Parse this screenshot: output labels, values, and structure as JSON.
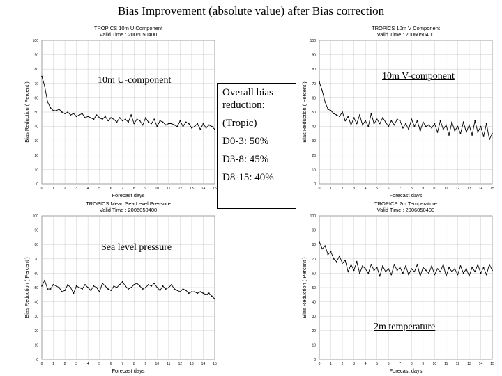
{
  "slide": {
    "title": "Bias Improvement (absolute value) after Bias correction"
  },
  "summary": {
    "heading_line1": "Overall bias",
    "heading_line2": "reduction:",
    "region": "(Tropic)",
    "items": [
      "D0-3: 50%",
      "D3-8: 45%",
      "D8-15: 40%"
    ]
  },
  "overlay_labels": {
    "u": "10m U-component",
    "v": "10m V-component",
    "slp": "Sea level pressure",
    "t2m": "2m temperature"
  },
  "colors": {
    "line": "#000000",
    "grid": "#cccccc",
    "frame": "#888888"
  },
  "chart_data": [
    {
      "id": "u",
      "type": "line",
      "title": "TROPICS 10m U Component",
      "subtitle": "Valid Time : 2006050400",
      "xlabel": "Forecast days",
      "ylabel": "Bias Reduction ( Percent )",
      "xlim": [
        0,
        15
      ],
      "ylim": [
        0,
        100
      ],
      "xticks": [
        0,
        1,
        2,
        3,
        4,
        5,
        6,
        7,
        8,
        9,
        10,
        11,
        12,
        13,
        14,
        15
      ],
      "yticks": [
        0,
        10,
        20,
        30,
        40,
        50,
        60,
        70,
        80,
        90,
        100
      ],
      "grid": true,
      "series": [
        {
          "values": [
            75,
            68,
            57,
            53,
            51,
            51,
            52,
            50,
            49,
            50,
            48,
            49,
            47,
            48,
            49,
            46,
            47,
            46,
            45,
            48,
            46,
            45,
            47,
            44,
            46,
            45,
            43,
            46,
            44,
            45,
            43,
            48,
            42,
            45,
            44,
            41,
            46,
            43,
            42,
            45,
            40,
            44,
            43,
            41,
            42,
            42,
            41,
            40,
            44,
            40,
            43,
            42,
            39,
            40,
            42,
            38,
            42,
            39,
            41,
            40,
            38
          ]
        }
      ]
    },
    {
      "id": "v",
      "type": "line",
      "title": "TROPICS 10m V Component",
      "subtitle": "Valid Time : 2006050400",
      "xlabel": "Forecast days",
      "ylabel": "Bias Reduction ( Percent )",
      "xlim": [
        0,
        15
      ],
      "ylim": [
        0,
        100
      ],
      "xticks": [
        0,
        1,
        2,
        3,
        4,
        5,
        6,
        7,
        8,
        9,
        10,
        11,
        12,
        13,
        14,
        15
      ],
      "yticks": [
        0,
        10,
        20,
        30,
        40,
        50,
        60,
        70,
        80,
        90,
        100
      ],
      "grid": true,
      "series": [
        {
          "values": [
            71,
            65,
            57,
            52,
            51,
            49,
            48,
            47,
            50,
            44,
            47,
            41,
            46,
            42,
            48,
            41,
            44,
            40,
            49,
            42,
            45,
            42,
            46,
            43,
            40,
            44,
            41,
            45,
            44,
            39,
            42,
            38,
            45,
            40,
            44,
            37,
            43,
            40,
            41,
            39,
            42,
            36,
            44,
            38,
            41,
            34,
            43,
            37,
            40,
            35,
            43,
            36,
            41,
            34,
            44,
            36,
            40,
            33,
            42,
            31,
            35
          ]
        }
      ]
    },
    {
      "id": "slp",
      "type": "line",
      "title": "TROPICS Mean Sea Level Pressure",
      "subtitle": "Valid Time : 2006050400",
      "xlabel": "Forecast days",
      "ylabel": "Bias Reduction ( Percent )",
      "xlim": [
        0,
        15
      ],
      "ylim": [
        0,
        100
      ],
      "xticks": [
        0,
        1,
        2,
        3,
        4,
        5,
        6,
        7,
        8,
        9,
        10,
        11,
        12,
        13,
        14,
        15
      ],
      "yticks": [
        0,
        10,
        20,
        30,
        40,
        50,
        60,
        70,
        80,
        90,
        100
      ],
      "grid": true,
      "series": [
        {
          "values": [
            51,
            55,
            49,
            49,
            52,
            51,
            50,
            47,
            48,
            52,
            50,
            46,
            51,
            50,
            49,
            52,
            50,
            48,
            51,
            50,
            47,
            53,
            51,
            49,
            48,
            51,
            50,
            52,
            54,
            51,
            49,
            50,
            52,
            53,
            51,
            49,
            50,
            52,
            51,
            53,
            50,
            48,
            51,
            49,
            50,
            52,
            49,
            48,
            47,
            49,
            48,
            46,
            47,
            47,
            46,
            47,
            46,
            45,
            46,
            44,
            42
          ]
        }
      ]
    },
    {
      "id": "t2m",
      "type": "line",
      "title": "TROPICS 2m Temperature",
      "subtitle": "Valid Time : 2006050400",
      "xlabel": "Forecast days",
      "ylabel": "Bias Reduction ( Percent )",
      "xlim": [
        0,
        15
      ],
      "ylim": [
        0,
        100
      ],
      "xticks": [
        0,
        1,
        2,
        3,
        4,
        5,
        6,
        7,
        8,
        9,
        10,
        11,
        12,
        13,
        14,
        15
      ],
      "yticks": [
        0,
        10,
        20,
        30,
        40,
        50,
        60,
        70,
        80,
        90,
        100
      ],
      "grid": true,
      "series": [
        {
          "values": [
            82,
            77,
            79,
            73,
            75,
            70,
            68,
            72,
            67,
            69,
            61,
            66,
            62,
            68,
            60,
            65,
            63,
            60,
            66,
            62,
            64,
            58,
            65,
            61,
            63,
            59,
            66,
            62,
            64,
            60,
            65,
            59,
            63,
            61,
            66,
            58,
            64,
            62,
            60,
            65,
            59,
            63,
            61,
            66,
            58,
            64,
            61,
            63,
            59,
            65,
            60,
            63,
            58,
            64,
            61,
            66,
            60,
            64,
            59,
            66,
            62
          ]
        }
      ]
    }
  ]
}
